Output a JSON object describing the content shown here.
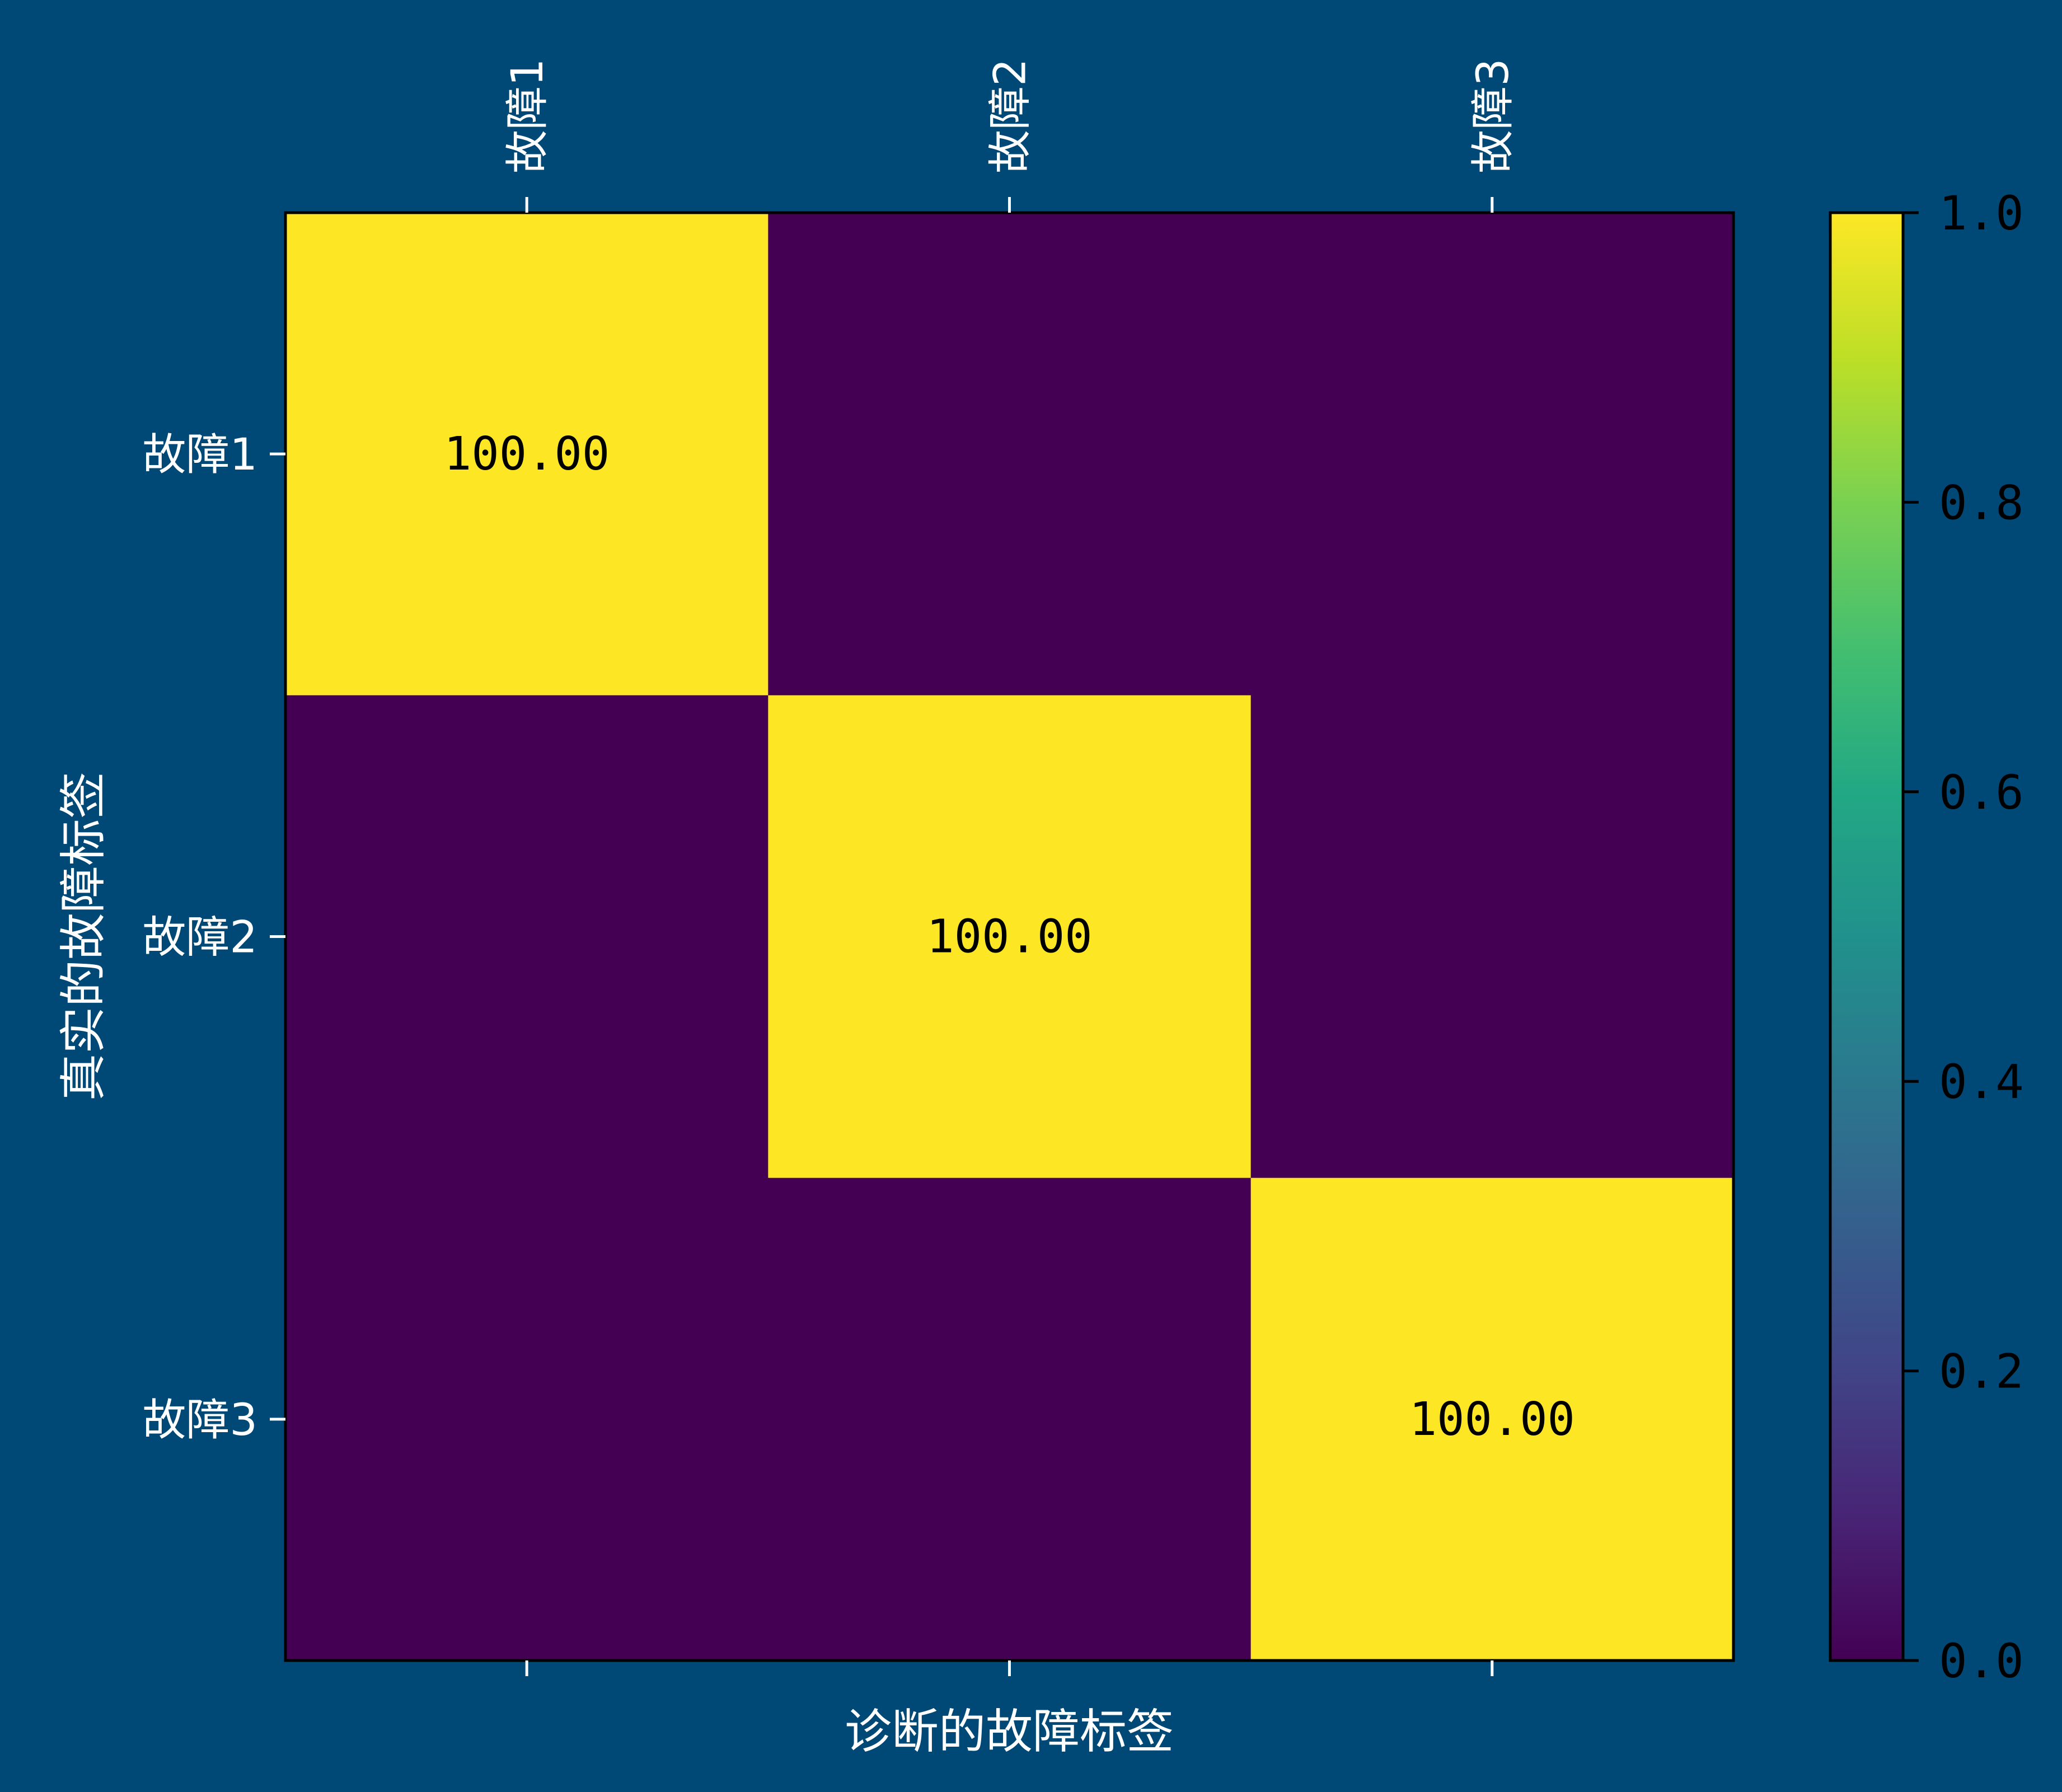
{
  "chart_data": {
    "type": "heatmap",
    "title": "",
    "xlabel": "诊断的故障标签",
    "ylabel": "真实的故障标签",
    "x_categories": [
      "故障1",
      "故障2",
      "故障3"
    ],
    "y_categories": [
      "故障1",
      "故障2",
      "故障3"
    ],
    "matrix": [
      [
        1.0,
        0.0,
        0.0
      ],
      [
        0.0,
        1.0,
        0.0
      ],
      [
        0.0,
        0.0,
        1.0
      ]
    ],
    "cell_labels": [
      [
        "100.00",
        "",
        ""
      ],
      [
        "",
        "100.00",
        ""
      ],
      [
        "",
        "",
        "100.00"
      ]
    ],
    "x_tick_position": "top",
    "colorbar": {
      "colormap": "viridis",
      "range": [
        0.0,
        1.0
      ],
      "ticks": [
        "0.0",
        "0.2",
        "0.4",
        "0.6",
        "0.8",
        "1.0"
      ]
    },
    "colors": {
      "background": "#004876",
      "high": "#fde725",
      "low": "#440154"
    }
  }
}
